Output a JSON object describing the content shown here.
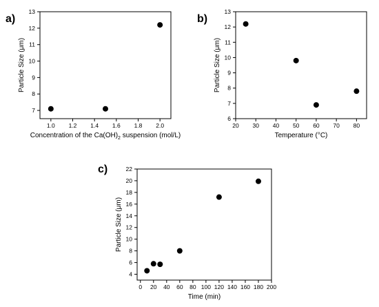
{
  "chart_data": [
    {
      "type": "scatter",
      "panel_label": "a)",
      "xlabel_parts": [
        "Concentration of the Ca(OH)",
        "2",
        " suspension (mol/L)"
      ],
      "ylabel": "Particle Size (μm)",
      "xlim": [
        0.9,
        2.1
      ],
      "ylim": [
        6.5,
        13
      ],
      "xticks": [
        1.0,
        1.2,
        1.4,
        1.6,
        1.8,
        2.0
      ],
      "xtick_labels": [
        "1.0",
        "1.2",
        "1.4",
        "1.6",
        "1.8",
        "2.0"
      ],
      "yticks": [
        7,
        8,
        9,
        10,
        11,
        12,
        13
      ],
      "ytick_labels": [
        "7",
        "8",
        "9",
        "10",
        "11",
        "12",
        "13"
      ],
      "x": [
        1.0,
        1.5,
        2.0
      ],
      "y": [
        7.1,
        7.1,
        12.2
      ],
      "grid": false
    },
    {
      "type": "scatter",
      "panel_label": "b)",
      "xlabel_parts": [
        "Temperature (°C)"
      ],
      "ylabel": "Particle Size (μm)",
      "xlim": [
        20,
        85
      ],
      "ylim": [
        6,
        13
      ],
      "xticks": [
        20,
        30,
        40,
        50,
        60,
        70,
        80
      ],
      "xtick_labels": [
        "20",
        "30",
        "40",
        "50",
        "60",
        "70",
        "80"
      ],
      "yticks": [
        6,
        7,
        8,
        9,
        10,
        11,
        12,
        13
      ],
      "ytick_labels": [
        "6",
        "7",
        "8",
        "9",
        "10",
        "11",
        "12",
        "13"
      ],
      "x": [
        25,
        50,
        60,
        80
      ],
      "y": [
        12.2,
        9.8,
        6.9,
        7.8
      ],
      "grid": false
    },
    {
      "type": "scatter",
      "panel_label": "c)",
      "xlabel_parts": [
        "Time (min)"
      ],
      "ylabel": "Particle Size (μm)",
      "xlim": [
        -5,
        200
      ],
      "ylim": [
        3,
        22
      ],
      "xticks": [
        0,
        20,
        40,
        60,
        80,
        100,
        120,
        140,
        160,
        180,
        200
      ],
      "xtick_labels": [
        "0",
        "20",
        "40",
        "60",
        "80",
        "100",
        "120",
        "140",
        "160",
        "180",
        "200"
      ],
      "yticks": [
        4,
        6,
        8,
        10,
        12,
        14,
        16,
        18,
        20,
        22
      ],
      "ytick_labels": [
        "4",
        "6",
        "8",
        "10",
        "12",
        "14",
        "16",
        "18",
        "20",
        "22"
      ],
      "x": [
        10,
        20,
        30,
        60,
        120,
        180
      ],
      "y": [
        4.6,
        5.8,
        5.7,
        8.0,
        17.2,
        19.9
      ],
      "grid": false
    }
  ]
}
